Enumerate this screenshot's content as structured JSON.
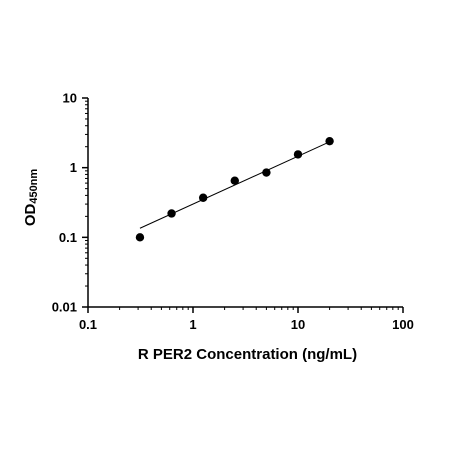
{
  "chart_data": {
    "type": "scatter",
    "title": "",
    "xlabel": "R PER2  Concentration (ng/mL)",
    "ylabel": "OD",
    "ylabel_subscript": "450nm",
    "xscale": "log",
    "yscale": "log",
    "xlim": [
      0.1,
      100
    ],
    "ylim": [
      0.01,
      10
    ],
    "xticks": [
      "0.1",
      "1",
      "10",
      "100"
    ],
    "yticks": [
      "0.01",
      "0.1",
      "1",
      "10"
    ],
    "grid": false,
    "legend": "none",
    "point_color": "#000000",
    "series": [
      {
        "x": [
          0.3125,
          0.625,
          1.25,
          2.5,
          5,
          10,
          20
        ],
        "y": [
          0.1,
          0.22,
          0.37,
          0.65,
          0.85,
          1.55,
          2.4
        ]
      }
    ],
    "fit_line": {
      "x": [
        0.3125,
        20
      ],
      "y": [
        0.135,
        2.35
      ]
    }
  }
}
